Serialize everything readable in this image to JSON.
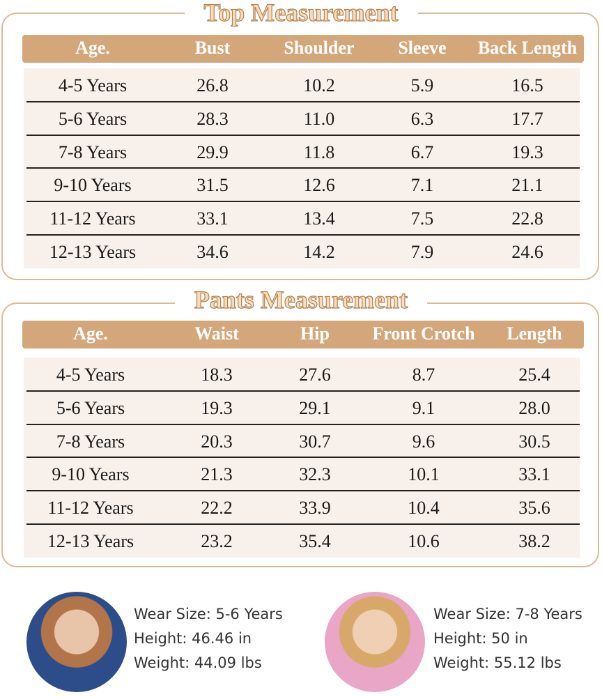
{
  "top": {
    "title": "Top Measurement",
    "headers": [
      "Age.",
      "Bust",
      "Shoulder",
      "Sleeve",
      "Back Length"
    ],
    "rows": [
      [
        "4-5 Years",
        "26.8",
        "10.2",
        "5.9",
        "16.5"
      ],
      [
        "5-6 Years",
        "28.3",
        "11.0",
        "6.3",
        "17.7"
      ],
      [
        "7-8 Years",
        "29.9",
        "11.8",
        "6.7",
        "19.3"
      ],
      [
        "9-10 Years",
        "31.5",
        "12.6",
        "7.1",
        "21.1"
      ],
      [
        "11-12 Years",
        "33.1",
        "13.4",
        "7.5",
        "22.8"
      ],
      [
        "12-13 Years",
        "34.6",
        "14.2",
        "7.9",
        "24.6"
      ]
    ]
  },
  "pants": {
    "title": "Pants Measurement",
    "headers": [
      "Age.",
      "Waist",
      "Hip",
      "Front Crotch",
      "Length"
    ],
    "rows": [
      [
        "4-5 Years",
        "18.3",
        "27.6",
        "8.7",
        "25.4"
      ],
      [
        "5-6 Years",
        "19.3",
        "29.1",
        "9.1",
        "28.0"
      ],
      [
        "7-8 Years",
        "20.3",
        "30.7",
        "9.6",
        "30.5"
      ],
      [
        "9-10 Years",
        "21.3",
        "32.3",
        "10.1",
        "33.1"
      ],
      [
        "11-12 Years",
        "22.2",
        "33.9",
        "10.4",
        "35.6"
      ],
      [
        "12-13 Years",
        "23.2",
        "35.4",
        "10.6",
        "38.2"
      ]
    ]
  },
  "models": [
    {
      "lines": [
        "Wear Size: 5-6 Years",
        "Height: 46.46 in",
        "Weight: 44.09 lbs"
      ]
    },
    {
      "lines": [
        "Wear Size: 7-8 Years",
        "Height: 50 in",
        "Weight: 55.12 lbs"
      ]
    }
  ]
}
